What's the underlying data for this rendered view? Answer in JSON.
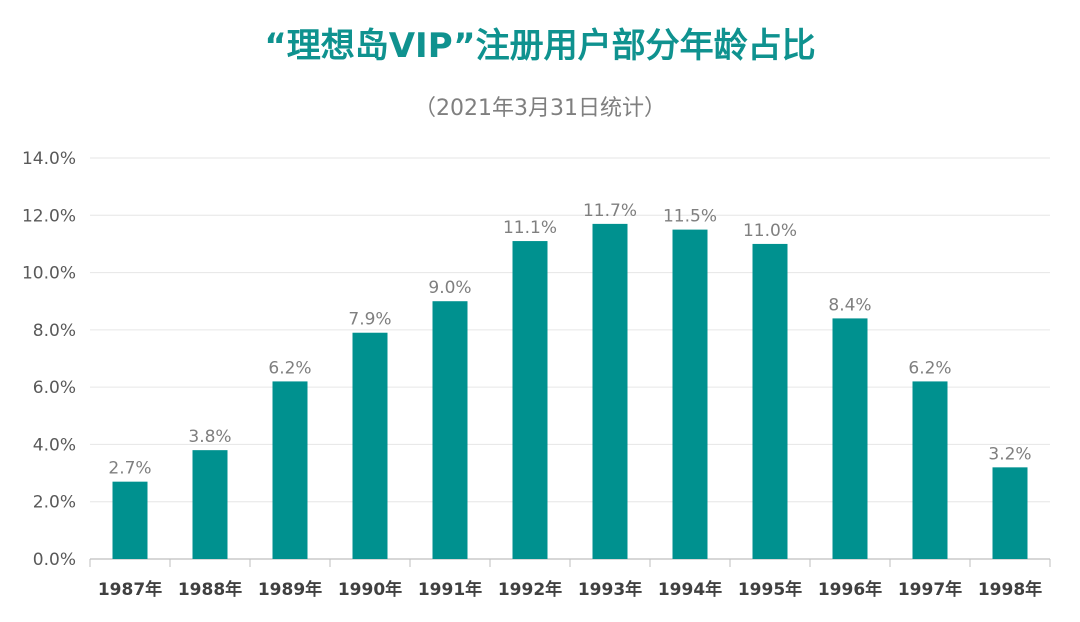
{
  "chart_data": {
    "type": "bar",
    "title": "“理想岛VIP”注册用户部分年龄占比",
    "subtitle": "（2021年3月31日统计）",
    "categories": [
      "1987年",
      "1988年",
      "1989年",
      "1990年",
      "1991年",
      "1992年",
      "1993年",
      "1994年",
      "1995年",
      "1996年",
      "1997年",
      "1998年"
    ],
    "values": [
      2.7,
      3.8,
      6.2,
      7.9,
      9.0,
      11.1,
      11.7,
      11.5,
      11.0,
      8.4,
      6.2,
      3.2
    ],
    "data_labels": [
      "2.7%",
      "3.8%",
      "6.2%",
      "7.9%",
      "9.0%",
      "11.1%",
      "11.7%",
      "11.5%",
      "11.0%",
      "8.4%",
      "6.2%",
      "3.2%"
    ],
    "yticks": [
      0,
      2,
      4,
      6,
      8,
      10,
      12,
      14
    ],
    "ytick_labels": [
      "0.0%",
      "2.0%",
      "4.0%",
      "6.0%",
      "8.0%",
      "10.0%",
      "12.0%",
      "14.0%"
    ],
    "ylim": [
      0,
      14
    ],
    "xlabel": "",
    "ylabel": "",
    "grid": true,
    "legend": "none",
    "colors": {
      "bar": "#00918f",
      "title": "#0f928f",
      "grid": "#e6e6e6",
      "axis": "#bfbfbf"
    }
  }
}
